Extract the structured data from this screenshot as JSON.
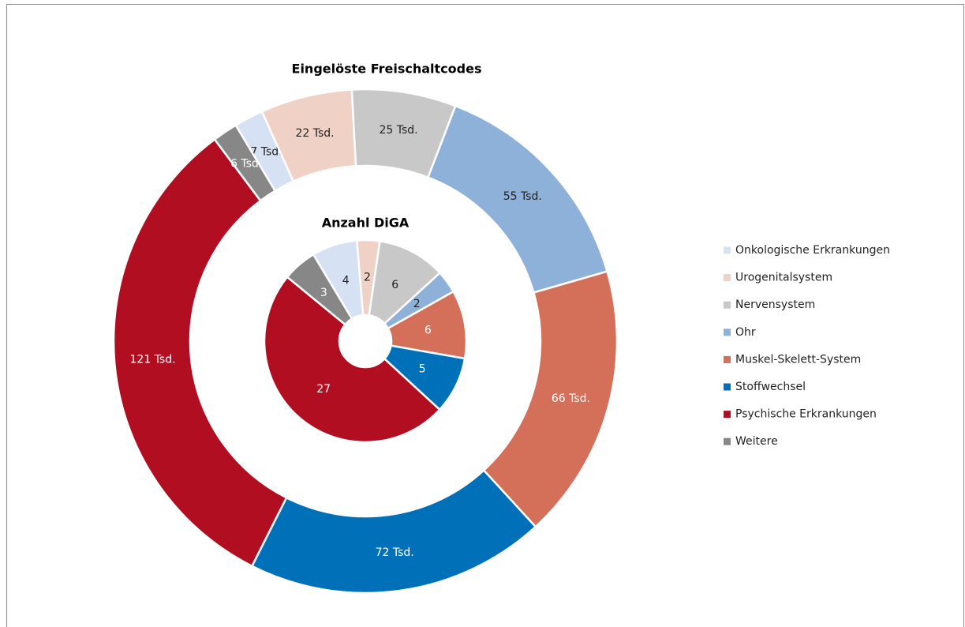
{
  "chart_data": {
    "type": "donut",
    "categories": [
      "Onkologische Erkrankungen",
      "Urogenitalsystem",
      "Nervensystem",
      "Ohr",
      "Muskel-Skelett-System",
      "Stoffwechsel",
      "Psychische Erkrankungen",
      "Weitere"
    ],
    "colors": [
      "#d6e1f3",
      "#f0d1c5",
      "#c8c8c8",
      "#8eb1da",
      "#d4705a",
      "#0070b8",
      "#b20e22",
      "#878787"
    ],
    "start_angle": 329,
    "legend": "right",
    "series": [
      {
        "name": "Eingelöste Freischaltcodes",
        "values": [
          7000,
          22000,
          25000,
          55000,
          66000,
          72000,
          121000,
          6000
        ],
        "value_labels": [
          "7 Tsd.",
          "22 Tsd.",
          "25 Tsd.",
          "55 Tsd.",
          "66 Tsd.",
          "72 Tsd.",
          "121 Tsd.",
          "6 Tsd."
        ]
      },
      {
        "name": "Anzahl DiGA",
        "values": [
          4,
          2,
          6,
          2,
          6,
          5,
          27,
          3
        ]
      }
    ]
  }
}
